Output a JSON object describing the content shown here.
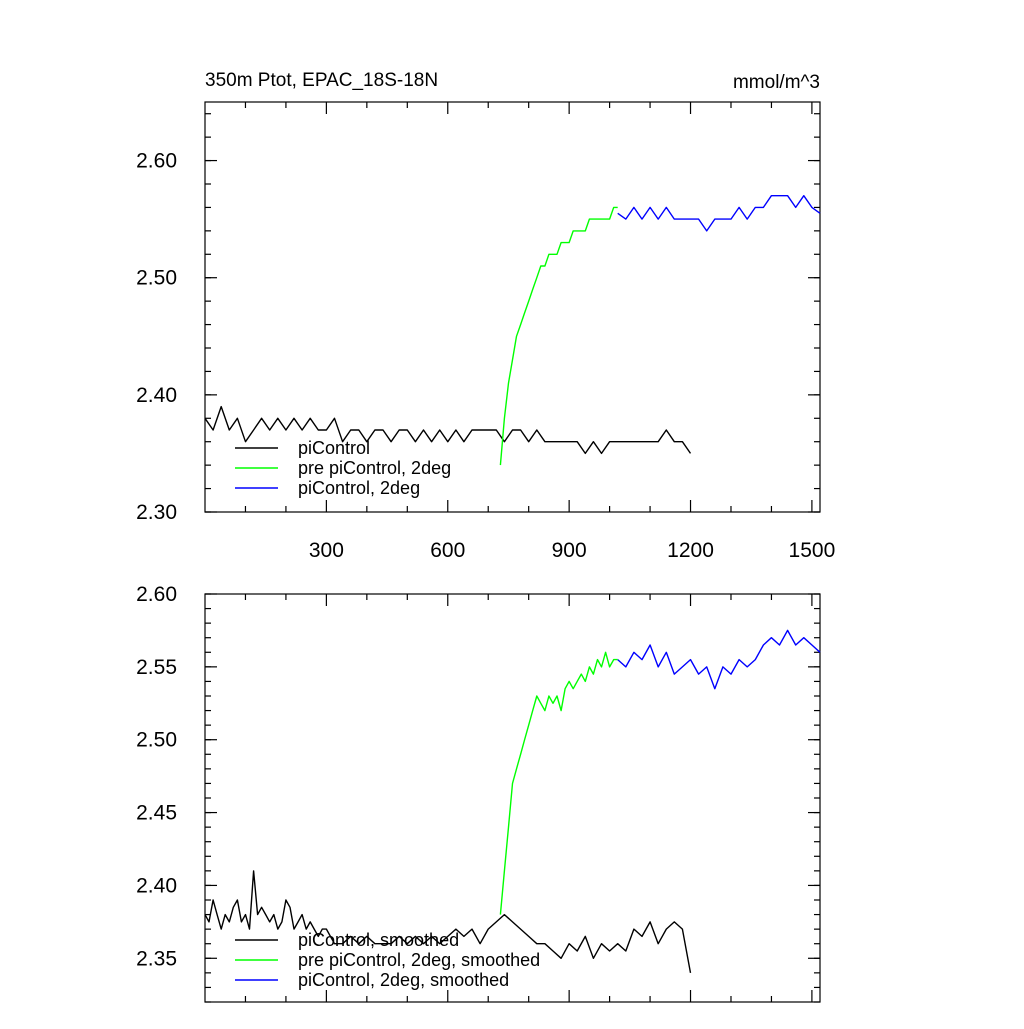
{
  "chart_data": [
    {
      "type": "line",
      "title": "350m Ptot, EPAC_18S-18N",
      "title_right": "mmol/m^3",
      "xlabel": "",
      "ylabel": "",
      "xlim": [
        0,
        1520
      ],
      "ylim": [
        2.3,
        2.65
      ],
      "xticks": [
        300,
        600,
        900,
        1200,
        1500
      ],
      "yticks": [
        2.3,
        2.4,
        2.5,
        2.6
      ],
      "ytick_labels": [
        "2.30",
        "2.40",
        "2.50",
        "2.60"
      ],
      "grid": false,
      "legend_position": "bottom-left",
      "series": [
        {
          "name": "piControl",
          "color": "#000000",
          "x": [
            0,
            20,
            40,
            60,
            80,
            100,
            120,
            140,
            160,
            180,
            200,
            220,
            240,
            260,
            280,
            300,
            320,
            340,
            360,
            380,
            400,
            420,
            440,
            460,
            480,
            500,
            520,
            540,
            560,
            580,
            600,
            620,
            640,
            660,
            680,
            700,
            720,
            740,
            760,
            780,
            800,
            820,
            840,
            860,
            880,
            900,
            920,
            940,
            960,
            980,
            1000,
            1020,
            1040,
            1060,
            1080,
            1100,
            1120,
            1140,
            1160,
            1180,
            1200
          ],
          "y": [
            2.38,
            2.37,
            2.39,
            2.37,
            2.38,
            2.36,
            2.37,
            2.38,
            2.37,
            2.38,
            2.37,
            2.38,
            2.37,
            2.38,
            2.37,
            2.37,
            2.38,
            2.36,
            2.37,
            2.37,
            2.36,
            2.37,
            2.37,
            2.36,
            2.37,
            2.37,
            2.36,
            2.37,
            2.36,
            2.37,
            2.36,
            2.37,
            2.36,
            2.37,
            2.37,
            2.37,
            2.37,
            2.36,
            2.37,
            2.37,
            2.36,
            2.37,
            2.36,
            2.36,
            2.36,
            2.36,
            2.36,
            2.35,
            2.36,
            2.35,
            2.36,
            2.36,
            2.36,
            2.36,
            2.36,
            2.36,
            2.36,
            2.37,
            2.36,
            2.36,
            2.35
          ]
        },
        {
          "name": "pre piControl, 2deg",
          "color": "#00ff00",
          "x": [
            730,
            740,
            750,
            760,
            770,
            780,
            790,
            800,
            810,
            820,
            830,
            840,
            850,
            860,
            870,
            880,
            890,
            900,
            910,
            920,
            930,
            940,
            950,
            960,
            970,
            980,
            990,
            1000,
            1010,
            1020
          ],
          "y": [
            2.34,
            2.38,
            2.41,
            2.43,
            2.45,
            2.46,
            2.47,
            2.48,
            2.49,
            2.5,
            2.51,
            2.51,
            2.52,
            2.52,
            2.52,
            2.53,
            2.53,
            2.53,
            2.54,
            2.54,
            2.54,
            2.54,
            2.55,
            2.55,
            2.55,
            2.55,
            2.55,
            2.55,
            2.56,
            2.56
          ]
        },
        {
          "name": "piControl, 2deg",
          "color": "#0000ff",
          "x": [
            1020,
            1040,
            1060,
            1080,
            1100,
            1120,
            1140,
            1160,
            1180,
            1200,
            1220,
            1240,
            1260,
            1280,
            1300,
            1320,
            1340,
            1360,
            1380,
            1400,
            1420,
            1440,
            1460,
            1480,
            1500,
            1520
          ],
          "y": [
            2.555,
            2.55,
            2.56,
            2.55,
            2.56,
            2.55,
            2.56,
            2.55,
            2.55,
            2.55,
            2.55,
            2.54,
            2.55,
            2.55,
            2.55,
            2.56,
            2.55,
            2.56,
            2.56,
            2.57,
            2.57,
            2.57,
            2.56,
            2.57,
            2.56,
            2.555
          ]
        }
      ]
    },
    {
      "type": "line",
      "title": "",
      "xlabel": "",
      "ylabel": "",
      "xlim": [
        0,
        1520
      ],
      "ylim": [
        2.32,
        2.6
      ],
      "xticks": [
        300,
        600,
        900,
        1200,
        1500
      ],
      "yticks": [
        2.35,
        2.4,
        2.45,
        2.5,
        2.55,
        2.6
      ],
      "ytick_labels": [
        "2.35",
        "2.40",
        "2.45",
        "2.50",
        "2.55",
        "2.60"
      ],
      "grid": false,
      "legend_position": "bottom-left",
      "series": [
        {
          "name": "piControl, smoothed",
          "color": "#000000",
          "x": [
            0,
            10,
            20,
            30,
            40,
            50,
            60,
            70,
            80,
            90,
            100,
            110,
            120,
            130,
            140,
            150,
            160,
            170,
            180,
            190,
            200,
            210,
            220,
            230,
            240,
            250,
            260,
            270,
            280,
            290,
            300,
            320,
            340,
            360,
            380,
            400,
            420,
            440,
            460,
            480,
            500,
            520,
            540,
            560,
            580,
            600,
            620,
            640,
            660,
            680,
            700,
            720,
            740,
            760,
            780,
            800,
            820,
            840,
            860,
            880,
            900,
            920,
            940,
            960,
            980,
            1000,
            1020,
            1040,
            1060,
            1080,
            1100,
            1120,
            1140,
            1160,
            1180,
            1200
          ],
          "y": [
            2.38,
            2.375,
            2.39,
            2.38,
            2.37,
            2.38,
            2.375,
            2.385,
            2.39,
            2.375,
            2.38,
            2.37,
            2.41,
            2.38,
            2.385,
            2.38,
            2.375,
            2.38,
            2.37,
            2.375,
            2.39,
            2.385,
            2.37,
            2.375,
            2.38,
            2.37,
            2.375,
            2.37,
            2.365,
            2.37,
            2.37,
            2.36,
            2.36,
            2.365,
            2.36,
            2.365,
            2.36,
            2.36,
            2.36,
            2.365,
            2.36,
            2.365,
            2.36,
            2.365,
            2.36,
            2.365,
            2.37,
            2.365,
            2.37,
            2.36,
            2.37,
            2.375,
            2.38,
            2.375,
            2.37,
            2.365,
            2.36,
            2.36,
            2.355,
            2.35,
            2.36,
            2.355,
            2.365,
            2.35,
            2.36,
            2.355,
            2.36,
            2.355,
            2.37,
            2.365,
            2.375,
            2.36,
            2.37,
            2.375,
            2.37,
            2.34
          ]
        },
        {
          "name": "pre piControl, 2deg, smoothed",
          "color": "#00ff00",
          "x": [
            730,
            740,
            750,
            760,
            770,
            780,
            790,
            800,
            810,
            820,
            830,
            840,
            850,
            860,
            870,
            880,
            890,
            900,
            910,
            920,
            930,
            940,
            950,
            960,
            970,
            980,
            990,
            1000,
            1010,
            1020
          ],
          "y": [
            2.38,
            2.41,
            2.44,
            2.47,
            2.48,
            2.49,
            2.5,
            2.51,
            2.52,
            2.53,
            2.525,
            2.52,
            2.53,
            2.525,
            2.53,
            2.52,
            2.535,
            2.54,
            2.535,
            2.54,
            2.545,
            2.54,
            2.55,
            2.545,
            2.555,
            2.55,
            2.56,
            2.55,
            2.555,
            2.555
          ]
        },
        {
          "name": "piControl, 2deg, smoothed",
          "color": "#0000ff",
          "x": [
            1020,
            1040,
            1060,
            1080,
            1100,
            1120,
            1140,
            1160,
            1180,
            1200,
            1220,
            1240,
            1260,
            1280,
            1300,
            1320,
            1340,
            1360,
            1380,
            1400,
            1420,
            1440,
            1460,
            1480,
            1500,
            1520
          ],
          "y": [
            2.555,
            2.55,
            2.56,
            2.555,
            2.565,
            2.55,
            2.56,
            2.545,
            2.55,
            2.555,
            2.545,
            2.55,
            2.535,
            2.55,
            2.545,
            2.555,
            2.55,
            2.555,
            2.565,
            2.57,
            2.565,
            2.575,
            2.565,
            2.57,
            2.565,
            2.56
          ]
        }
      ]
    }
  ]
}
